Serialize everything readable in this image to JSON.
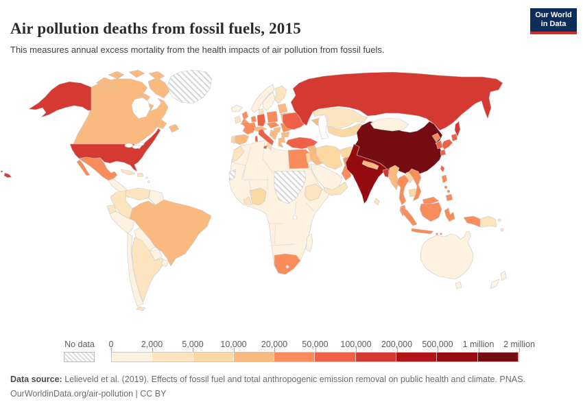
{
  "chart_data": {
    "type": "choropleth",
    "title": "Air pollution deaths from fossil fuels, 2015",
    "subtitle": "This measures annual excess mortality from the health impacts of air pollution from fossil fuels.",
    "legend": {
      "no_data_label": "No data",
      "bin_labels": [
        "0",
        "2,000",
        "5,000",
        "10,000",
        "20,000",
        "50,000",
        "100,000",
        "200,000",
        "500,000",
        "1 million",
        "2 million"
      ],
      "colors": [
        "#fdf2e0",
        "#fce4bf",
        "#fbd8a1",
        "#f9b97f",
        "#f98c5b",
        "#ee6148",
        "#d43a32",
        "#b11418",
        "#960b10",
        "#740c11"
      ]
    },
    "entities": {
      "greenland": null,
      "canada": 4,
      "united-states": 7,
      "mexico": 5,
      "central-america": 1,
      "panama": 1,
      "cuba": 2,
      "hispaniola": 2,
      "caribbean-islands": 1,
      "colombia": 2,
      "venezuela": 2,
      "guyanas": 1,
      "ecuador": 2,
      "peru": 1,
      "brazil": 4,
      "bolivia": 1,
      "paraguay": 1,
      "uruguay": 1,
      "chile": 1,
      "argentina": 2,
      "iceland": 1,
      "ireland": 2,
      "united-kingdom": 5,
      "portugal": 3,
      "spain": 4,
      "france": 5,
      "belgium-netherlands": 5,
      "germany": 6,
      "denmark": 2,
      "norway": 1,
      "sweden": 1,
      "finland": 2,
      "baltics": 4,
      "belarus": 4,
      "poland": 5,
      "czechia-slovakia": 5,
      "austria-switzerland": 4,
      "hungary": 4,
      "italy": 6,
      "balkans": 4,
      "romania": 5,
      "bulgaria": 4,
      "greece": 4,
      "ukraine": 6,
      "russia": 7,
      "caucasus": 4,
      "turkey": 6,
      "syria": 4,
      "levant": 3,
      "iraq": 4,
      "iran": 3,
      "saudi-arabia": 1,
      "yemen-oman": 2,
      "kazakhstan": 2,
      "central-asia": 3,
      "afghanistan": 3,
      "pakistan": 5,
      "india": 9,
      "nepal": 4,
      "bangladesh": 7,
      "sri-lanka": 2,
      "china": 10,
      "mongolia": 1,
      "taiwan": 6,
      "north-korea": 5,
      "south-korea": 6,
      "japan": 6,
      "myanmar": 4,
      "laos": 3,
      "thailand": 5,
      "cambodia": 3,
      "vietnam": 5,
      "malaysia": 5,
      "indonesia": 5,
      "philippines": 5,
      "papua-new-guinea": 2,
      "australia": 1,
      "new-zealand": 1,
      "africa-other": 1,
      "morocco": 2,
      "tunisia": 3,
      "western-sahara": null,
      "egypt": 5,
      "sudan": null,
      "nigeria": 3,
      "ghana-coast": 2,
      "ethiopia": 2,
      "south-africa": 5,
      "madagascar": 1
    }
  },
  "header": {
    "logo": {
      "line1": "Our World",
      "line2": "in Data",
      "bg_color": "#0d2e5b",
      "accent_color": "#cc2f28"
    }
  },
  "footer": {
    "source_label": "Data source:",
    "source_text": " Lelieveld et al. (2019). Effects of fossil fuel and total anthropogenic emission removal on public health and climate. PNAS.",
    "license_text": "OurWorldinData.org/air-pollution | CC BY"
  }
}
